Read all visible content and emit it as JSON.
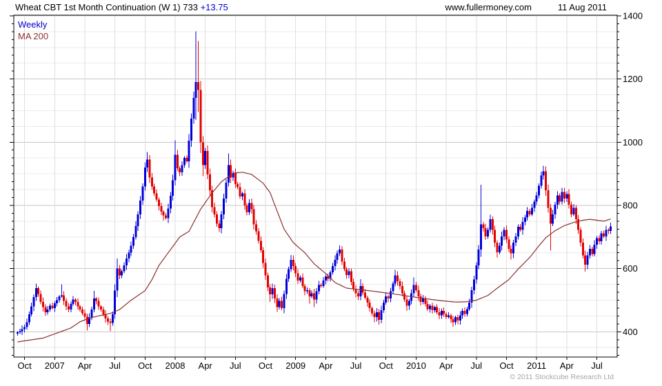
{
  "header": {
    "title_main": "Wheat CBT 1st Month Continuation (W 1) 733",
    "title_change": "+13.75",
    "site": "www.fullermoney.com",
    "date": "11 Aug 2011"
  },
  "legend": {
    "series_label": "Weekly",
    "ma_label": "MA 200"
  },
  "footer": {
    "copyright": "© 2011 Stockcube Research Ltd"
  },
  "chart_data": {
    "type": "candlestick",
    "title": "Wheat CBT 1st Month Continuation (W 1)",
    "last_price": 733,
    "change": 13.75,
    "timeframe": "Weekly",
    "overlay": "MA 200",
    "ylim": [
      320,
      1402
    ],
    "y_tick_labels": [
      400,
      600,
      800,
      1000,
      1200,
      1400
    ],
    "grid_minor_step": 50,
    "x_ticks": [
      {
        "week": 3,
        "label": "Oct"
      },
      {
        "week": 16,
        "label": "2007"
      },
      {
        "week": 29,
        "label": "Apr"
      },
      {
        "week": 42,
        "label": "Jul"
      },
      {
        "week": 55,
        "label": "Oct"
      },
      {
        "week": 68,
        "label": "2008"
      },
      {
        "week": 81,
        "label": "Apr"
      },
      {
        "week": 94,
        "label": "Jul"
      },
      {
        "week": 107,
        "label": "Oct"
      },
      {
        "week": 120,
        "label": "2009"
      },
      {
        "week": 133,
        "label": "Apr"
      },
      {
        "week": 146,
        "label": "Jul"
      },
      {
        "week": 159,
        "label": "Oct"
      },
      {
        "week": 172,
        "label": "2010"
      },
      {
        "week": 185,
        "label": "Apr"
      },
      {
        "week": 198,
        "label": "Jul"
      },
      {
        "week": 211,
        "label": "Oct"
      },
      {
        "week": 224,
        "label": "2011"
      },
      {
        "week": 237,
        "label": "Apr"
      },
      {
        "week": 250,
        "label": "Jul"
      }
    ],
    "closes": [
      398,
      402,
      408,
      415,
      430,
      455,
      480,
      510,
      538,
      520,
      495,
      478,
      462,
      470,
      482,
      475,
      490,
      500,
      512,
      515,
      498,
      480,
      470,
      488,
      502,
      495,
      480,
      470,
      458,
      448,
      425,
      445,
      470,
      505,
      498,
      480,
      470,
      455,
      442,
      432,
      428,
      455,
      530,
      600,
      578,
      592,
      610,
      632,
      650,
      672,
      700,
      735,
      772,
      815,
      860,
      920,
      945,
      888,
      860,
      838,
      818,
      798,
      780,
      768,
      760,
      790,
      830,
      880,
      960,
      918,
      905,
      928,
      950,
      940,
      1005,
      1075,
      1140,
      1190,
      1165,
      1000,
      928,
      972,
      898,
      848,
      795,
      772,
      742,
      728,
      772,
      822,
      872,
      928,
      888,
      902,
      868,
      858,
      828,
      838,
      800,
      778,
      808,
      788,
      740,
      718,
      688,
      658,
      618,
      578,
      540,
      518,
      538,
      505,
      478,
      498,
      475,
      520,
      568,
      598,
      628,
      608,
      585,
      562,
      572,
      545,
      528,
      532,
      512,
      522,
      502,
      528,
      548,
      545,
      562,
      575,
      568,
      588,
      608,
      628,
      648,
      660,
      622,
      598,
      580,
      592,
      558,
      535,
      522,
      512,
      545,
      524,
      508,
      492,
      475,
      458,
      446,
      462,
      438,
      468,
      492,
      512,
      505,
      528,
      552,
      578,
      560,
      545,
      522,
      502,
      482,
      498,
      522,
      548,
      532,
      512,
      495,
      505,
      488,
      472,
      482,
      468,
      478,
      462,
      452,
      466,
      456,
      446,
      452,
      440,
      430,
      446,
      436,
      452,
      466,
      456,
      472,
      492,
      532,
      565,
      610,
      660,
      740,
      728,
      702,
      722,
      756,
      722,
      682,
      652,
      672,
      702,
      722,
      692,
      662,
      648,
      682,
      702,
      732,
      722,
      748,
      762,
      782,
      772,
      792,
      812,
      832,
      862,
      895,
      908,
      848,
      792,
      742,
      772,
      802,
      832,
      812,
      842,
      822,
      836,
      802,
      772,
      792,
      756,
      722,
      682,
      642,
      612,
      642,
      662,
      646,
      676,
      696,
      686,
      712,
      702,
      722,
      719,
      733
    ],
    "hl_overrides": {
      "8": [
        552,
        null
      ],
      "19": [
        550,
        null
      ],
      "30": [
        null,
        404
      ],
      "33": [
        529,
        null
      ],
      "40": [
        null,
        402
      ],
      "43": [
        632,
        null
      ],
      "56": [
        969,
        null
      ],
      "63": [
        null,
        752
      ],
      "68": [
        1006,
        null
      ],
      "77": [
        1351,
        1070
      ],
      "78": [
        1320,
        1095
      ],
      "80": [
        null,
        893
      ],
      "87": [
        null,
        716
      ],
      "91": [
        965,
        null
      ],
      "109": [
        null,
        494
      ],
      "112": [
        null,
        463
      ],
      "118": [
        643,
        null
      ],
      "126": [
        null,
        489
      ],
      "128": [
        null,
        478
      ],
      "139": [
        673,
        null
      ],
      "148": [
        566,
        null
      ],
      "154": [
        null,
        430
      ],
      "156": [
        null,
        423
      ],
      "163": [
        596,
        null
      ],
      "168": [
        null,
        466
      ],
      "171": [
        572,
        null
      ],
      "188": [
        null,
        416
      ],
      "190": [
        null,
        424
      ],
      "200": [
        865,
        null
      ],
      "207": [
        null,
        635
      ],
      "213": [
        null,
        629
      ],
      "227": [
        925,
        null
      ],
      "230": [
        null,
        657
      ],
      "235": [
        856,
        null
      ],
      "245": [
        null,
        591
      ]
    },
    "ma_anchors": [
      [
        0,
        368
      ],
      [
        11,
        380
      ],
      [
        23,
        412
      ],
      [
        27,
        432
      ],
      [
        32,
        445
      ],
      [
        36,
        452
      ],
      [
        40,
        458
      ],
      [
        44,
        470
      ],
      [
        49,
        500
      ],
      [
        55,
        530
      ],
      [
        58,
        565
      ],
      [
        61,
        610
      ],
      [
        66,
        660
      ],
      [
        70,
        700
      ],
      [
        74,
        718
      ],
      [
        79,
        788
      ],
      [
        84,
        840
      ],
      [
        88,
        875
      ],
      [
        93,
        902
      ],
      [
        97,
        905
      ],
      [
        101,
        898
      ],
      [
        106,
        870
      ],
      [
        109,
        840
      ],
      [
        112,
        782
      ],
      [
        115,
        725
      ],
      [
        119,
        682
      ],
      [
        124,
        650
      ],
      [
        128,
        615
      ],
      [
        133,
        584
      ],
      [
        137,
        556
      ],
      [
        142,
        538
      ],
      [
        148,
        533
      ],
      [
        154,
        528
      ],
      [
        160,
        522
      ],
      [
        166,
        516
      ],
      [
        171,
        510
      ],
      [
        177,
        504
      ],
      [
        183,
        498
      ],
      [
        189,
        494
      ],
      [
        194,
        495
      ],
      [
        198,
        500
      ],
      [
        203,
        515
      ],
      [
        207,
        538
      ],
      [
        212,
        565
      ],
      [
        216,
        598
      ],
      [
        221,
        635
      ],
      [
        225,
        672
      ],
      [
        228,
        698
      ],
      [
        232,
        720
      ],
      [
        236,
        736
      ],
      [
        240,
        746
      ],
      [
        244,
        753
      ],
      [
        247,
        756
      ],
      [
        250,
        753
      ],
      [
        253,
        750
      ],
      [
        256,
        757
      ]
    ],
    "colors": {
      "up": "#0000d9",
      "down": "#e30000",
      "ma": "#8b2f2f",
      "grid_minor": "#ebebeb",
      "grid_major": "#c6c6c6",
      "grid_vertical": "#dedede",
      "frame": "#000000"
    },
    "legend_position": "top-left",
    "grid": true
  }
}
